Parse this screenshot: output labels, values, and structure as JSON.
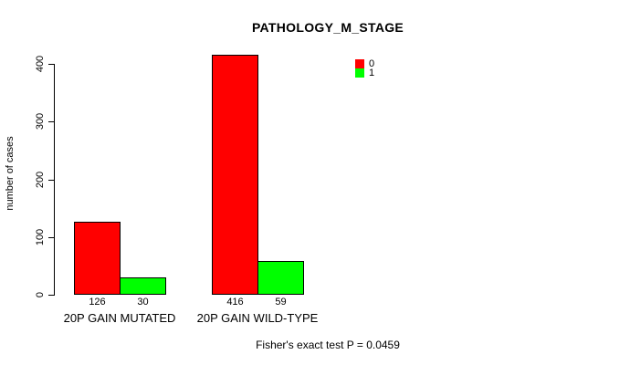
{
  "chart_data": {
    "type": "bar",
    "title": "PATHOLOGY_M_STAGE",
    "ylabel": "number of cases",
    "xlabel": "",
    "ylim": [
      0,
      400
    ],
    "yticks": [
      0,
      100,
      200,
      300,
      400
    ],
    "categories": [
      "20P GAIN MUTATED",
      "20P GAIN WILD-TYPE"
    ],
    "series": [
      {
        "name": "0",
        "color": "#ff0000",
        "values": [
          126,
          416
        ]
      },
      {
        "name": "1",
        "color": "#00ff00",
        "values": [
          30,
          59
        ]
      }
    ],
    "show_values_under_bars": true,
    "legend_position": "top-right",
    "grid": false,
    "footnote": "Fisher's exact test P = 0.0459",
    "colors": {
      "bar_border": "#000000",
      "axis": "#000000",
      "text": "#000000",
      "background": "#ffffff"
    }
  }
}
